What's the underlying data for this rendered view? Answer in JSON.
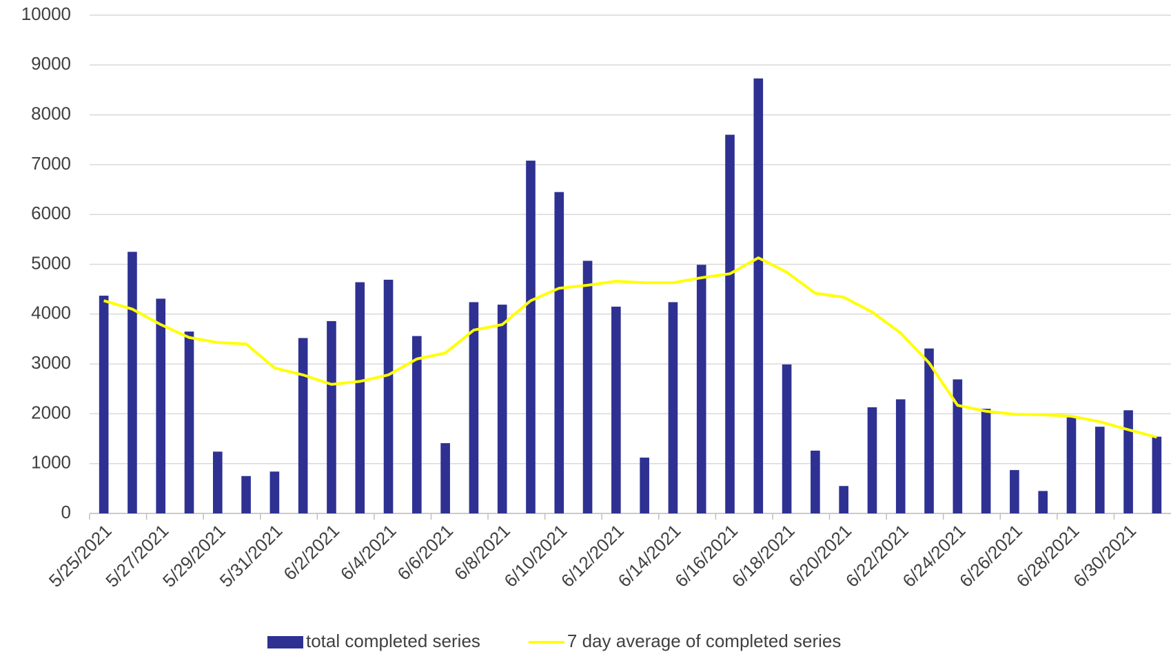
{
  "chart_data": {
    "type": "bar",
    "categories": [
      "5/25/2021",
      null,
      "5/27/2021",
      null,
      "5/29/2021",
      null,
      "5/31/2021",
      null,
      "6/2/2021",
      null,
      "6/4/2021",
      null,
      "6/6/2021",
      null,
      "6/8/2021",
      null,
      "6/10/2021",
      null,
      "6/12/2021",
      null,
      "6/14/2021",
      null,
      "6/16/2021",
      null,
      "6/18/2021",
      null,
      "6/20/2021",
      null,
      "6/22/2021",
      null,
      "6/24/2021",
      null,
      "6/26/2021",
      null,
      "6/28/2021",
      null,
      "6/30/2021",
      null
    ],
    "series": [
      {
        "name": "total completed series",
        "type": "bar",
        "color": "#2e3192",
        "values": [
          4370,
          5250,
          4310,
          3650,
          1240,
          750,
          840,
          3520,
          3860,
          4640,
          4690,
          3560,
          1410,
          4240,
          4190,
          7080,
          6450,
          5070,
          4150,
          1120,
          4240,
          4990,
          7600,
          8730,
          2990,
          1260,
          550,
          2130,
          2290,
          3310,
          2690,
          2100,
          870,
          450,
          1950,
          1740,
          2070,
          1540
        ]
      },
      {
        "name": "7 day average of completed series",
        "type": "line",
        "color": "#ffff00",
        "values": [
          4270,
          4100,
          3790,
          3530,
          3430,
          3400,
          2920,
          2780,
          2590,
          2650,
          2780,
          3100,
          3220,
          3680,
          3790,
          4270,
          4520,
          4580,
          4660,
          4630,
          4630,
          4730,
          4810,
          5130,
          4840,
          4420,
          4340,
          4040,
          3620,
          3020,
          2170,
          2050,
          1990,
          1980,
          1950,
          1840,
          1680,
          1530
        ]
      }
    ],
    "ylim": [
      0,
      10000
    ],
    "yticks": [
      0,
      1000,
      2000,
      3000,
      4000,
      5000,
      6000,
      7000,
      8000,
      9000,
      10000
    ],
    "grid": true,
    "legend": "bottom"
  }
}
